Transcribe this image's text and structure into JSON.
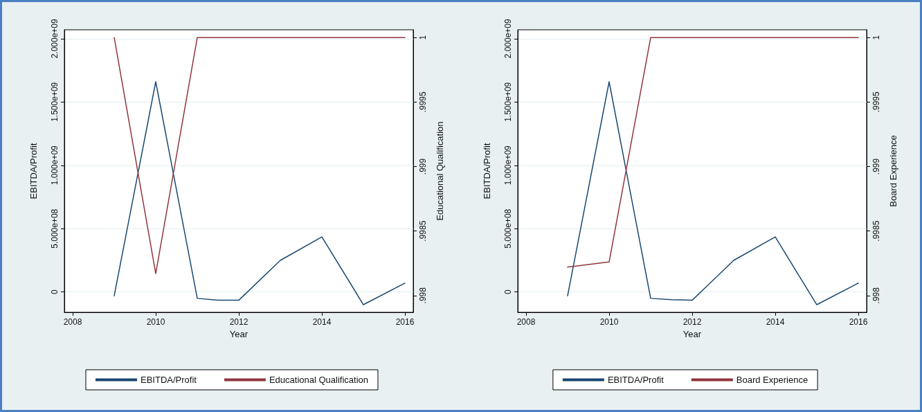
{
  "chart_data": [
    {
      "type": "line",
      "xlabel": "Year",
      "ylabel": "EBITDA/Profit",
      "y2label": "Educational Qualification",
      "xlim": [
        2007.8,
        2016.2
      ],
      "xticks": [
        2008,
        2010,
        2012,
        2014,
        2016
      ],
      "ylim": [
        -160000000,
        2070000000
      ],
      "yticks": [
        {
          "value": 0,
          "label": "0"
        },
        {
          "value": 500000000,
          "label": "5.000e+08"
        },
        {
          "value": 1000000000,
          "label": "1.000e+09"
        },
        {
          "value": 1500000000,
          "label": "1.500e+09"
        },
        {
          "value": 2000000000,
          "label": "2.000e+09"
        }
      ],
      "y2lim": [
        0.99787,
        1.00006
      ],
      "y2ticks": [
        {
          "value": 0.998,
          "label": ".998"
        },
        {
          "value": 0.9985,
          "label": ".9985"
        },
        {
          "value": 0.999,
          "label": ".999"
        },
        {
          "value": 0.9995,
          "label": ".9995"
        },
        {
          "value": 1,
          "label": "1"
        }
      ],
      "grid": "y",
      "legend": "bottom",
      "marker": "none",
      "line_style": "solid",
      "series": [
        {
          "name": "EBITDA/Profit",
          "color": "#1a476f",
          "x": [
            2009,
            2010,
            2011,
            2011.5,
            2012,
            2013,
            2014,
            2015,
            2016
          ],
          "values": [
            -30000000,
            1660000000,
            -50000000,
            -65000000,
            -65000000,
            250000000,
            435000000,
            -100000000,
            70000000
          ]
        },
        {
          "name": "Educational Qualification",
          "color": "#90353b",
          "axis": "y2",
          "x": [
            2009,
            2010,
            2011,
            2012,
            2013,
            2014,
            2015,
            2016
          ],
          "values": [
            1,
            0.99817,
            1,
            1,
            1,
            1,
            1,
            1
          ]
        }
      ]
    },
    {
      "type": "line",
      "xlabel": "Year",
      "ylabel": "EBITDA/Profit",
      "y2label": "Board Experience",
      "xlim": [
        2007.8,
        2016.2
      ],
      "xticks": [
        2008,
        2010,
        2012,
        2014,
        2016
      ],
      "ylim": [
        -160000000,
        2070000000
      ],
      "yticks": [
        {
          "value": 0,
          "label": "0"
        },
        {
          "value": 500000000,
          "label": "5.000e+08"
        },
        {
          "value": 1000000000,
          "label": "1.000e+09"
        },
        {
          "value": 1500000000,
          "label": "1.500e+09"
        },
        {
          "value": 2000000000,
          "label": "2.000e+09"
        }
      ],
      "y2lim": [
        0.99787,
        1.00006
      ],
      "y2ticks": [
        {
          "value": 0.998,
          "label": ".998"
        },
        {
          "value": 0.9985,
          "label": ".9985"
        },
        {
          "value": 0.999,
          "label": ".999"
        },
        {
          "value": 0.9995,
          "label": ".9995"
        },
        {
          "value": 1,
          "label": "1"
        }
      ],
      "grid": "y",
      "legend": "bottom",
      "marker": "none",
      "line_style": "solid",
      "series": [
        {
          "name": "EBITDA/Profit",
          "color": "#1a476f",
          "x": [
            2009,
            2010,
            2011,
            2011.5,
            2012,
            2013,
            2014,
            2015,
            2016
          ],
          "values": [
            -30000000,
            1660000000,
            -50000000,
            -60000000,
            -65000000,
            250000000,
            435000000,
            -100000000,
            70000000
          ]
        },
        {
          "name": "Board Experience",
          "color": "#90353b",
          "axis": "y2",
          "x": [
            2009,
            2010,
            2011,
            2012,
            2013,
            2014,
            2015,
            2016
          ],
          "values": [
            0.99822,
            0.99826,
            1,
            1,
            1,
            1,
            1,
            1
          ]
        }
      ]
    }
  ]
}
